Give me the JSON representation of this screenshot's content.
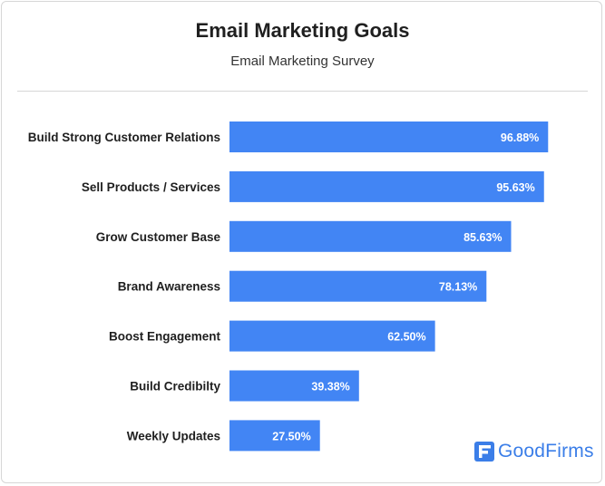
{
  "header": {
    "title": "Email Marketing Goals",
    "subtitle": "Email Marketing Survey"
  },
  "brand": {
    "name": "GoodFirms",
    "icon": "goodfirms-logo-icon",
    "color": "#3b7ee8"
  },
  "colors": {
    "bar": "#4285f4",
    "label": "#1f1f1f",
    "value_label": "#ffffff"
  },
  "chart_data": {
    "type": "bar",
    "orientation": "horizontal",
    "title": "Email Marketing Goals",
    "subtitle": "Email Marketing Survey",
    "categories": [
      "Build Strong Customer Relations",
      "Sell Products / Services",
      "Grow Customer Base",
      "Brand Awareness",
      "Boost Engagement",
      "Build Credibilty",
      "Weekly Updates"
    ],
    "values": [
      96.88,
      95.63,
      85.63,
      78.13,
      62.5,
      39.38,
      27.5
    ],
    "value_labels": [
      "96.88%",
      "95.63%",
      "85.63%",
      "78.13%",
      "62.50%",
      "39.38%",
      "27.50%"
    ],
    "unit": "%",
    "xlim": [
      0,
      100
    ],
    "grid": false,
    "legend": "none"
  }
}
